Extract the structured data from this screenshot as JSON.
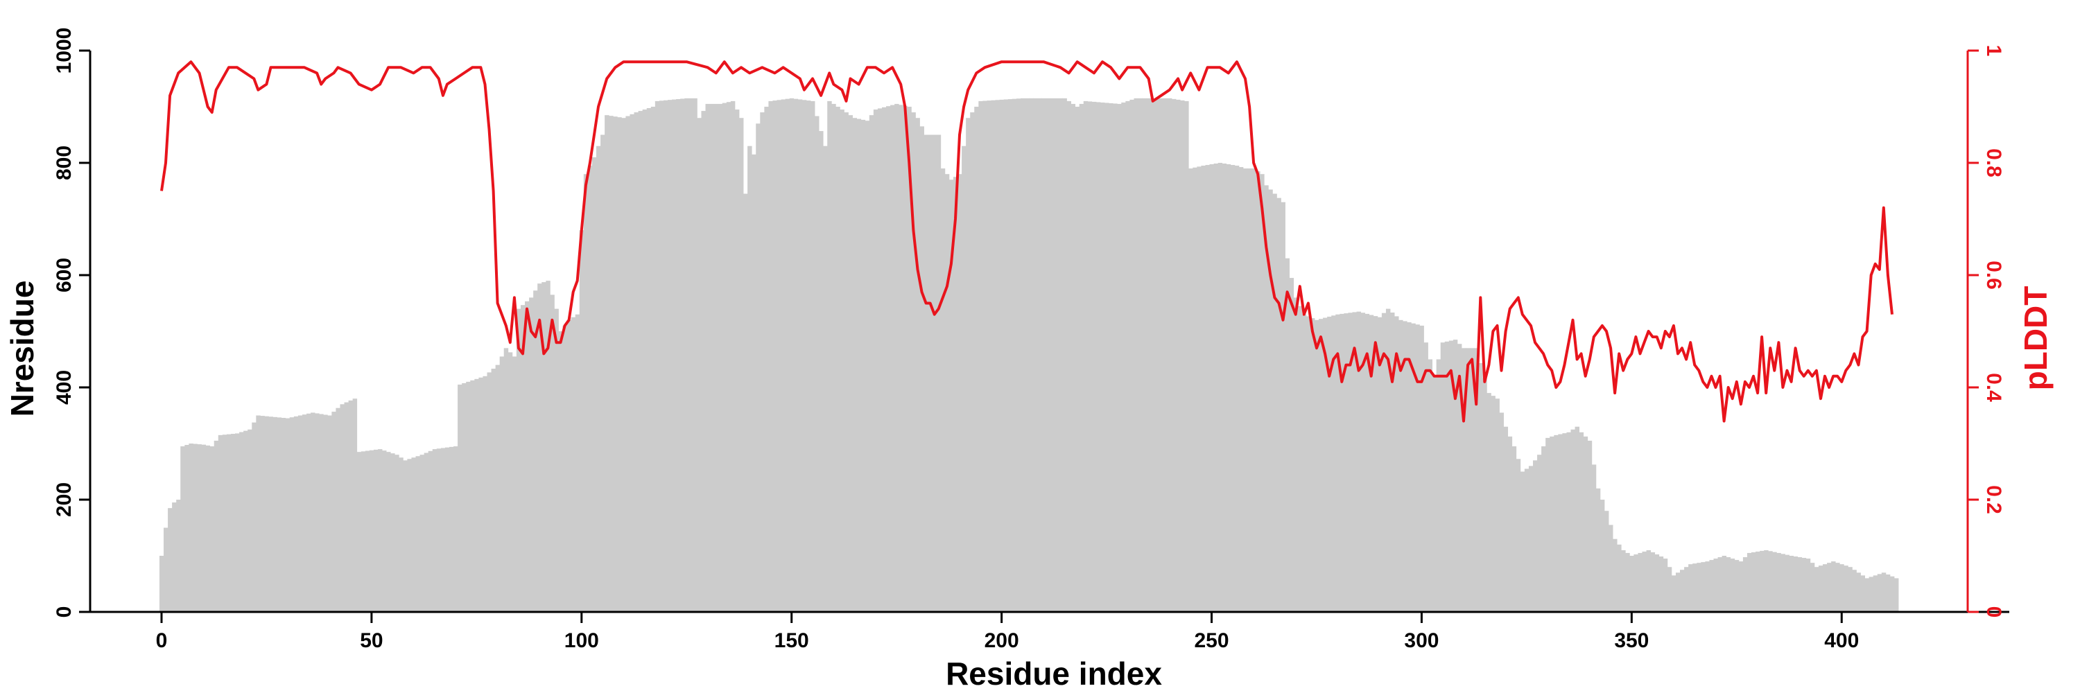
{
  "chart_data": {
    "type": "bar+line",
    "title": "",
    "xlabel": "Residue index",
    "ylabel": "Nresidue",
    "y2label": "pLDDT",
    "xlim": [
      -17,
      430
    ],
    "ylim": [
      0,
      1000
    ],
    "y2lim": [
      0,
      1
    ],
    "xticks": [
      0,
      50,
      100,
      150,
      200,
      250,
      300,
      350,
      400
    ],
    "yticks": [
      0,
      200,
      400,
      600,
      800,
      1000
    ],
    "y2ticks": [
      0,
      0.2,
      0.4,
      0.6,
      0.8,
      1
    ],
    "grid": false,
    "legend": "none",
    "colors": {
      "bars": "#cccccc",
      "line": "#e8141c",
      "axis": "#000000",
      "y2axis": "#e8141c"
    },
    "bar_knots": [
      [
        0,
        100
      ],
      [
        1,
        150
      ],
      [
        2,
        185
      ],
      [
        3,
        195
      ],
      [
        4,
        200
      ],
      [
        5,
        295
      ],
      [
        7,
        300
      ],
      [
        10,
        298
      ],
      [
        12,
        295
      ],
      [
        14,
        315
      ],
      [
        18,
        318
      ],
      [
        21,
        325
      ],
      [
        23,
        350
      ],
      [
        30,
        345
      ],
      [
        36,
        355
      ],
      [
        40,
        350
      ],
      [
        43,
        370
      ],
      [
        46,
        380
      ],
      [
        47,
        285
      ],
      [
        52,
        290
      ],
      [
        56,
        280
      ],
      [
        58,
        270
      ],
      [
        62,
        280
      ],
      [
        65,
        290
      ],
      [
        70,
        295
      ],
      [
        71,
        405
      ],
      [
        75,
        415
      ],
      [
        77,
        420
      ],
      [
        80,
        440
      ],
      [
        82,
        470
      ],
      [
        84,
        455
      ],
      [
        85,
        540
      ],
      [
        88,
        560
      ],
      [
        90,
        585
      ],
      [
        92,
        590
      ],
      [
        94,
        540
      ],
      [
        95,
        500
      ],
      [
        97,
        520
      ],
      [
        99,
        530
      ],
      [
        100,
        680
      ],
      [
        101,
        780
      ],
      [
        103,
        810
      ],
      [
        105,
        850
      ],
      [
        106,
        885
      ],
      [
        110,
        880
      ],
      [
        113,
        890
      ],
      [
        117,
        900
      ],
      [
        118,
        910
      ],
      [
        125,
        915
      ],
      [
        127,
        915
      ],
      [
        128,
        880
      ],
      [
        130,
        905
      ],
      [
        133,
        905
      ],
      [
        136,
        910
      ],
      [
        138,
        880
      ],
      [
        139,
        745
      ],
      [
        140,
        830
      ],
      [
        141,
        815
      ],
      [
        142,
        870
      ],
      [
        143,
        890
      ],
      [
        145,
        910
      ],
      [
        150,
        915
      ],
      [
        155,
        910
      ],
      [
        158,
        830
      ],
      [
        159,
        910
      ],
      [
        162,
        895
      ],
      [
        165,
        880
      ],
      [
        168,
        875
      ],
      [
        170,
        895
      ],
      [
        175,
        905
      ],
      [
        178,
        900
      ],
      [
        180,
        880
      ],
      [
        182,
        850
      ],
      [
        185,
        850
      ],
      [
        186,
        790
      ],
      [
        188,
        770
      ],
      [
        190,
        780
      ],
      [
        192,
        880
      ],
      [
        195,
        910
      ],
      [
        205,
        915
      ],
      [
        215,
        915
      ],
      [
        218,
        900
      ],
      [
        220,
        910
      ],
      [
        228,
        905
      ],
      [
        232,
        915
      ],
      [
        240,
        915
      ],
      [
        244,
        910
      ],
      [
        245,
        790
      ],
      [
        248,
        795
      ],
      [
        252,
        800
      ],
      [
        256,
        795
      ],
      [
        258,
        790
      ],
      [
        260,
        790
      ],
      [
        262,
        780
      ],
      [
        263,
        760
      ],
      [
        265,
        745
      ],
      [
        267,
        730
      ],
      [
        268,
        630
      ],
      [
        270,
        560
      ],
      [
        272,
        530
      ],
      [
        275,
        520
      ],
      [
        280,
        530
      ],
      [
        285,
        535
      ],
      [
        290,
        525
      ],
      [
        292,
        540
      ],
      [
        295,
        520
      ],
      [
        300,
        510
      ],
      [
        303,
        420
      ],
      [
        305,
        480
      ],
      [
        308,
        485
      ],
      [
        310,
        470
      ],
      [
        313,
        470
      ],
      [
        316,
        390
      ],
      [
        318,
        380
      ],
      [
        320,
        330
      ],
      [
        322,
        295
      ],
      [
        324,
        250
      ],
      [
        326,
        260
      ],
      [
        328,
        280
      ],
      [
        330,
        310
      ],
      [
        332,
        315
      ],
      [
        335,
        320
      ],
      [
        337,
        330
      ],
      [
        338,
        320
      ],
      [
        340,
        305
      ],
      [
        342,
        220
      ],
      [
        344,
        180
      ],
      [
        346,
        130
      ],
      [
        348,
        110
      ],
      [
        350,
        100
      ],
      [
        354,
        110
      ],
      [
        358,
        95
      ],
      [
        360,
        65
      ],
      [
        364,
        85
      ],
      [
        368,
        90
      ],
      [
        372,
        100
      ],
      [
        376,
        90
      ],
      [
        378,
        105
      ],
      [
        382,
        110
      ],
      [
        388,
        100
      ],
      [
        392,
        95
      ],
      [
        394,
        80
      ],
      [
        398,
        90
      ],
      [
        402,
        80
      ],
      [
        406,
        60
      ],
      [
        410,
        70
      ],
      [
        413,
        60
      ]
    ],
    "plddt_knots": [
      [
        0,
        0.75
      ],
      [
        1,
        0.8
      ],
      [
        2,
        0.92
      ],
      [
        4,
        0.96
      ],
      [
        7,
        0.98
      ],
      [
        9,
        0.96
      ],
      [
        11,
        0.9
      ],
      [
        12,
        0.89
      ],
      [
        13,
        0.93
      ],
      [
        16,
        0.97
      ],
      [
        18,
        0.97
      ],
      [
        20,
        0.96
      ],
      [
        22,
        0.95
      ],
      [
        23,
        0.93
      ],
      [
        25,
        0.94
      ],
      [
        26,
        0.97
      ],
      [
        30,
        0.97
      ],
      [
        34,
        0.97
      ],
      [
        37,
        0.96
      ],
      [
        38,
        0.94
      ],
      [
        39,
        0.95
      ],
      [
        41,
        0.96
      ],
      [
        42,
        0.97
      ],
      [
        45,
        0.96
      ],
      [
        47,
        0.94
      ],
      [
        50,
        0.93
      ],
      [
        52,
        0.94
      ],
      [
        54,
        0.97
      ],
      [
        57,
        0.97
      ],
      [
        60,
        0.96
      ],
      [
        62,
        0.97
      ],
      [
        64,
        0.97
      ],
      [
        66,
        0.95
      ],
      [
        67,
        0.92
      ],
      [
        68,
        0.94
      ],
      [
        70,
        0.95
      ],
      [
        72,
        0.96
      ],
      [
        74,
        0.97
      ],
      [
        76,
        0.97
      ],
      [
        77,
        0.94
      ],
      [
        78,
        0.86
      ],
      [
        79,
        0.75
      ],
      [
        80,
        0.55
      ],
      [
        81,
        0.53
      ],
      [
        82,
        0.51
      ],
      [
        83,
        0.48
      ],
      [
        84,
        0.56
      ],
      [
        85,
        0.47
      ],
      [
        86,
        0.46
      ],
      [
        87,
        0.54
      ],
      [
        88,
        0.5
      ],
      [
        89,
        0.49
      ],
      [
        90,
        0.52
      ],
      [
        91,
        0.46
      ],
      [
        92,
        0.47
      ],
      [
        93,
        0.52
      ],
      [
        94,
        0.48
      ],
      [
        95,
        0.48
      ],
      [
        96,
        0.51
      ],
      [
        97,
        0.52
      ],
      [
        98,
        0.57
      ],
      [
        99,
        0.59
      ],
      [
        100,
        0.68
      ],
      [
        101,
        0.76
      ],
      [
        102,
        0.8
      ],
      [
        103,
        0.85
      ],
      [
        104,
        0.9
      ],
      [
        106,
        0.95
      ],
      [
        108,
        0.97
      ],
      [
        110,
        0.98
      ],
      [
        115,
        0.98
      ],
      [
        120,
        0.98
      ],
      [
        125,
        0.98
      ],
      [
        130,
        0.97
      ],
      [
        132,
        0.96
      ],
      [
        134,
        0.98
      ],
      [
        136,
        0.96
      ],
      [
        138,
        0.97
      ],
      [
        140,
        0.96
      ],
      [
        143,
        0.97
      ],
      [
        146,
        0.96
      ],
      [
        148,
        0.97
      ],
      [
        150,
        0.96
      ],
      [
        152,
        0.95
      ],
      [
        153,
        0.93
      ],
      [
        155,
        0.95
      ],
      [
        157,
        0.92
      ],
      [
        159,
        0.96
      ],
      [
        160,
        0.94
      ],
      [
        162,
        0.93
      ],
      [
        163,
        0.91
      ],
      [
        164,
        0.95
      ],
      [
        166,
        0.94
      ],
      [
        168,
        0.97
      ],
      [
        170,
        0.97
      ],
      [
        172,
        0.96
      ],
      [
        174,
        0.97
      ],
      [
        176,
        0.94
      ],
      [
        177,
        0.9
      ],
      [
        178,
        0.8
      ],
      [
        179,
        0.68
      ],
      [
        180,
        0.61
      ],
      [
        181,
        0.57
      ],
      [
        182,
        0.55
      ],
      [
        183,
        0.55
      ],
      [
        184,
        0.53
      ],
      [
        185,
        0.54
      ],
      [
        186,
        0.56
      ],
      [
        187,
        0.58
      ],
      [
        188,
        0.62
      ],
      [
        189,
        0.7
      ],
      [
        190,
        0.85
      ],
      [
        191,
        0.9
      ],
      [
        192,
        0.93
      ],
      [
        194,
        0.96
      ],
      [
        196,
        0.97
      ],
      [
        200,
        0.98
      ],
      [
        205,
        0.98
      ],
      [
        210,
        0.98
      ],
      [
        214,
        0.97
      ],
      [
        216,
        0.96
      ],
      [
        218,
        0.98
      ],
      [
        220,
        0.97
      ],
      [
        222,
        0.96
      ],
      [
        224,
        0.98
      ],
      [
        226,
        0.97
      ],
      [
        228,
        0.95
      ],
      [
        230,
        0.97
      ],
      [
        233,
        0.97
      ],
      [
        235,
        0.95
      ],
      [
        236,
        0.91
      ],
      [
        238,
        0.92
      ],
      [
        240,
        0.93
      ],
      [
        242,
        0.95
      ],
      [
        243,
        0.93
      ],
      [
        245,
        0.96
      ],
      [
        247,
        0.93
      ],
      [
        249,
        0.97
      ],
      [
        252,
        0.97
      ],
      [
        254,
        0.96
      ],
      [
        256,
        0.98
      ],
      [
        258,
        0.95
      ],
      [
        259,
        0.9
      ],
      [
        260,
        0.8
      ],
      [
        261,
        0.78
      ],
      [
        262,
        0.72
      ],
      [
        263,
        0.65
      ],
      [
        264,
        0.6
      ],
      [
        265,
        0.56
      ],
      [
        266,
        0.55
      ],
      [
        267,
        0.52
      ],
      [
        268,
        0.57
      ],
      [
        269,
        0.55
      ],
      [
        270,
        0.53
      ],
      [
        271,
        0.58
      ],
      [
        272,
        0.53
      ],
      [
        273,
        0.55
      ],
      [
        274,
        0.5
      ],
      [
        275,
        0.47
      ],
      [
        276,
        0.49
      ],
      [
        277,
        0.46
      ],
      [
        278,
        0.42
      ],
      [
        279,
        0.45
      ],
      [
        280,
        0.46
      ],
      [
        281,
        0.41
      ],
      [
        282,
        0.44
      ],
      [
        283,
        0.44
      ],
      [
        284,
        0.47
      ],
      [
        285,
        0.43
      ],
      [
        286,
        0.44
      ],
      [
        287,
        0.46
      ],
      [
        288,
        0.42
      ],
      [
        289,
        0.48
      ],
      [
        290,
        0.44
      ],
      [
        291,
        0.46
      ],
      [
        292,
        0.45
      ],
      [
        293,
        0.41
      ],
      [
        294,
        0.46
      ],
      [
        295,
        0.43
      ],
      [
        296,
        0.45
      ],
      [
        297,
        0.45
      ],
      [
        298,
        0.43
      ],
      [
        299,
        0.41
      ],
      [
        300,
        0.41
      ],
      [
        301,
        0.43
      ],
      [
        302,
        0.43
      ],
      [
        303,
        0.42
      ],
      [
        305,
        0.42
      ],
      [
        306,
        0.42
      ],
      [
        307,
        0.43
      ],
      [
        308,
        0.38
      ],
      [
        309,
        0.42
      ],
      [
        310,
        0.34
      ],
      [
        311,
        0.44
      ],
      [
        312,
        0.45
      ],
      [
        313,
        0.37
      ],
      [
        314,
        0.56
      ],
      [
        315,
        0.41
      ],
      [
        316,
        0.44
      ],
      [
        317,
        0.5
      ],
      [
        318,
        0.51
      ],
      [
        319,
        0.43
      ],
      [
        320,
        0.5
      ],
      [
        321,
        0.54
      ],
      [
        322,
        0.55
      ],
      [
        323,
        0.56
      ],
      [
        324,
        0.53
      ],
      [
        325,
        0.52
      ],
      [
        326,
        0.51
      ],
      [
        327,
        0.48
      ],
      [
        328,
        0.47
      ],
      [
        329,
        0.46
      ],
      [
        330,
        0.44
      ],
      [
        331,
        0.43
      ],
      [
        332,
        0.4
      ],
      [
        333,
        0.41
      ],
      [
        334,
        0.44
      ],
      [
        335,
        0.48
      ],
      [
        336,
        0.52
      ],
      [
        337,
        0.45
      ],
      [
        338,
        0.46
      ],
      [
        339,
        0.42
      ],
      [
        340,
        0.45
      ],
      [
        341,
        0.49
      ],
      [
        342,
        0.5
      ],
      [
        343,
        0.51
      ],
      [
        344,
        0.5
      ],
      [
        345,
        0.47
      ],
      [
        346,
        0.39
      ],
      [
        347,
        0.46
      ],
      [
        348,
        0.43
      ],
      [
        349,
        0.45
      ],
      [
        350,
        0.46
      ],
      [
        351,
        0.49
      ],
      [
        352,
        0.46
      ],
      [
        353,
        0.48
      ],
      [
        354,
        0.5
      ],
      [
        355,
        0.49
      ],
      [
        356,
        0.49
      ],
      [
        357,
        0.47
      ],
      [
        358,
        0.5
      ],
      [
        359,
        0.49
      ],
      [
        360,
        0.51
      ],
      [
        361,
        0.46
      ],
      [
        362,
        0.47
      ],
      [
        363,
        0.45
      ],
      [
        364,
        0.48
      ],
      [
        365,
        0.44
      ],
      [
        366,
        0.43
      ],
      [
        367,
        0.41
      ],
      [
        368,
        0.4
      ],
      [
        369,
        0.42
      ],
      [
        370,
        0.4
      ],
      [
        371,
        0.42
      ],
      [
        372,
        0.34
      ],
      [
        373,
        0.4
      ],
      [
        374,
        0.38
      ],
      [
        375,
        0.41
      ],
      [
        376,
        0.37
      ],
      [
        377,
        0.41
      ],
      [
        378,
        0.4
      ],
      [
        379,
        0.42
      ],
      [
        380,
        0.39
      ],
      [
        381,
        0.49
      ],
      [
        382,
        0.39
      ],
      [
        383,
        0.47
      ],
      [
        384,
        0.43
      ],
      [
        385,
        0.48
      ],
      [
        386,
        0.4
      ],
      [
        387,
        0.43
      ],
      [
        388,
        0.41
      ],
      [
        389,
        0.47
      ],
      [
        390,
        0.43
      ],
      [
        391,
        0.42
      ],
      [
        392,
        0.43
      ],
      [
        393,
        0.42
      ],
      [
        394,
        0.43
      ],
      [
        395,
        0.38
      ],
      [
        396,
        0.42
      ],
      [
        397,
        0.4
      ],
      [
        398,
        0.42
      ],
      [
        399,
        0.42
      ],
      [
        400,
        0.41
      ],
      [
        401,
        0.43
      ],
      [
        402,
        0.44
      ],
      [
        403,
        0.46
      ],
      [
        404,
        0.44
      ],
      [
        405,
        0.49
      ],
      [
        406,
        0.5
      ],
      [
        407,
        0.6
      ],
      [
        408,
        0.62
      ],
      [
        409,
        0.61
      ],
      [
        410,
        0.72
      ],
      [
        411,
        0.6
      ],
      [
        412,
        0.53
      ]
    ]
  }
}
